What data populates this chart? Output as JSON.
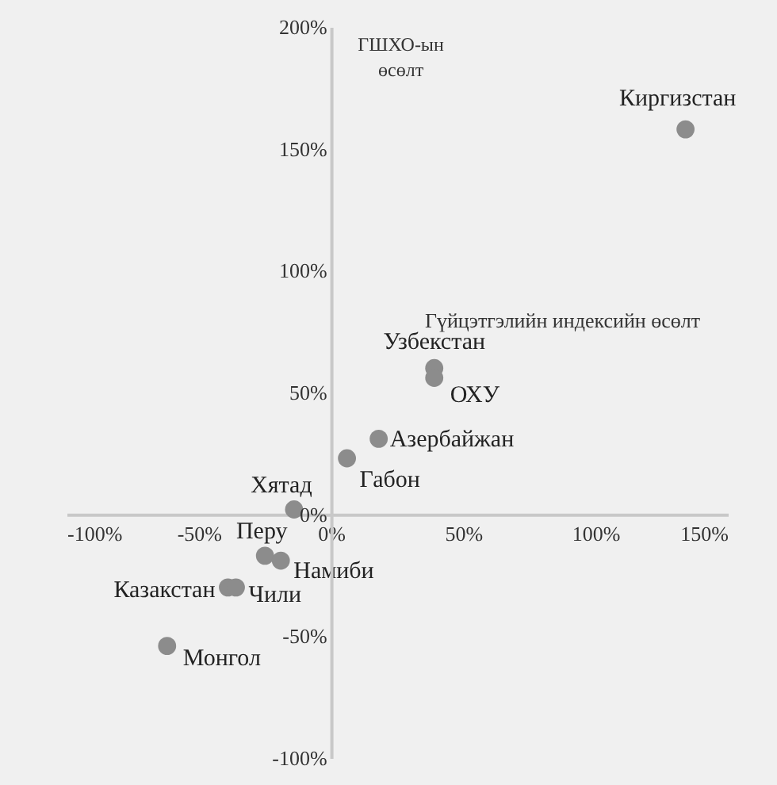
{
  "chart_data": {
    "type": "scatter",
    "xlabel": "Гүйцэтгэлийн индексийн өсөлт",
    "ylabel": "ГШХО-ын өсөлт",
    "x": [
      134,
      39,
      39,
      18,
      6,
      -14,
      -25,
      -19,
      -39,
      -36,
      -62
    ],
    "series": [
      {
        "color": "#8c8c8c",
        "values": [
          158,
          60,
          56,
          31,
          23,
          2,
          -17,
          -19,
          -30,
          -30,
          -54
        ]
      }
    ],
    "annotations": [
      {
        "text": "Киргизстан",
        "x": 134,
        "y": 158
      },
      {
        "text": "Узбекстан",
        "x": 39,
        "y": 60
      },
      {
        "text": "ОХУ",
        "x": 39,
        "y": 56
      },
      {
        "text": "Азербайжан",
        "x": 18,
        "y": 31
      },
      {
        "text": "Габон",
        "x": 6,
        "y": 23
      },
      {
        "text": "Хятад",
        "x": -14,
        "y": 2
      },
      {
        "text": "Перу",
        "x": -25,
        "y": -17
      },
      {
        "text": "Намиби",
        "x": -19,
        "y": -19
      },
      {
        "text": "Казакстан",
        "x": -39,
        "y": -30
      },
      {
        "text": "Чили",
        "x": -36,
        "y": -30
      },
      {
        "text": "Монгол",
        "x": -62,
        "y": -54
      }
    ],
    "xlim": [
      -100,
      150
    ],
    "ylim": [
      -100,
      200
    ],
    "xticks": [
      {
        "value": -100,
        "label": "-100%"
      },
      {
        "value": -50,
        "label": "-50%"
      },
      {
        "value": 0,
        "label": "0%"
      },
      {
        "value": 50,
        "label": "50%"
      },
      {
        "value": 100,
        "label": "100%"
      },
      {
        "value": 150,
        "label": "150%"
      }
    ],
    "yticks": [
      {
        "value": -100,
        "label": "-100%"
      },
      {
        "value": -50,
        "label": "-50%"
      },
      {
        "value": 0,
        "label": "0%"
      },
      {
        "value": 50,
        "label": "50%"
      },
      {
        "value": 100,
        "label": "100%"
      },
      {
        "value": 150,
        "label": "150%"
      },
      {
        "value": 200,
        "label": "200%"
      }
    ],
    "marker": "circle"
  }
}
